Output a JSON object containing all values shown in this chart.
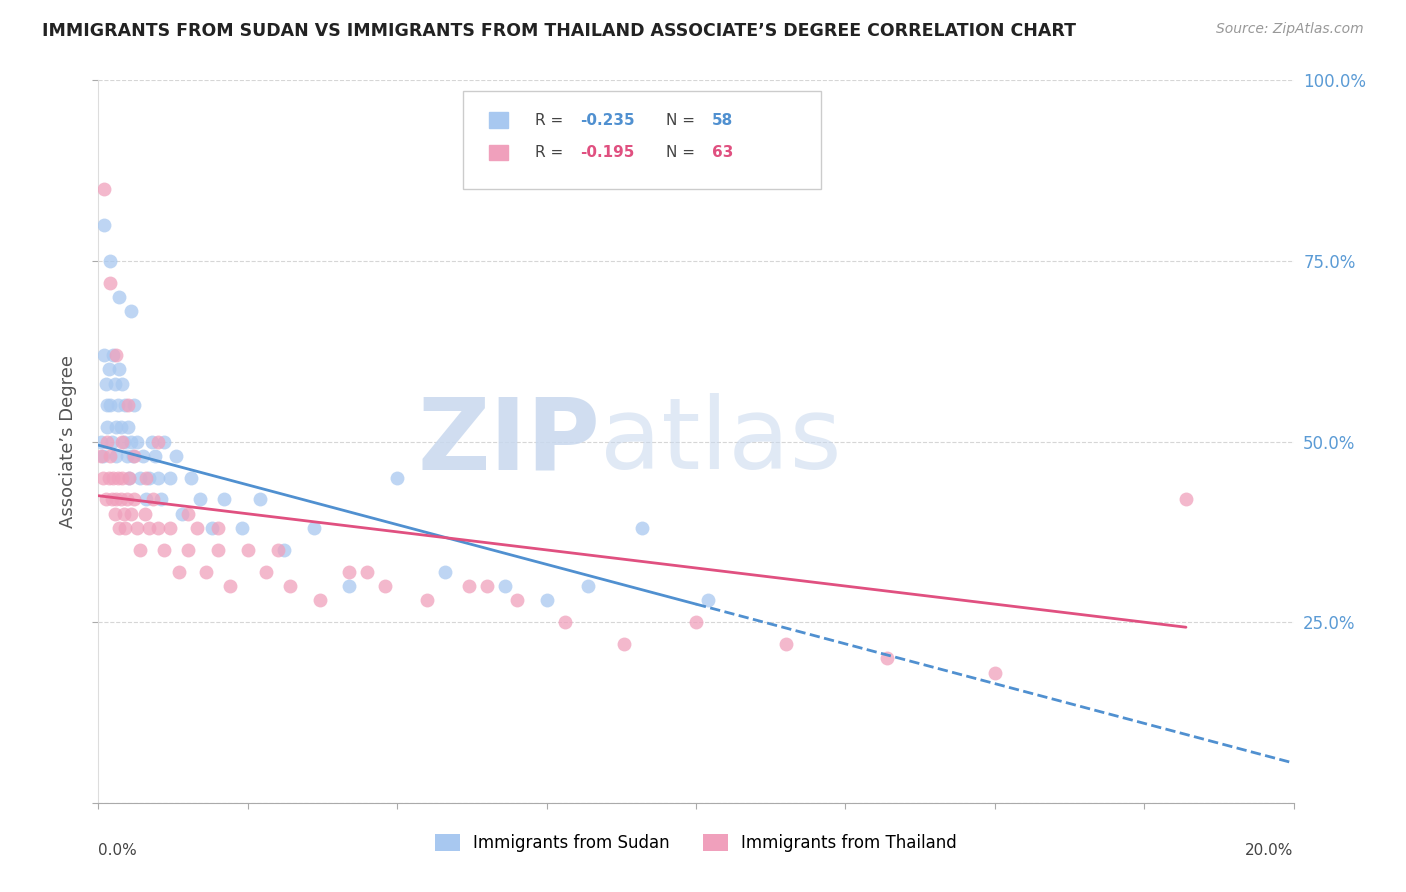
{
  "title": "IMMIGRANTS FROM SUDAN VS IMMIGRANTS FROM THAILAND ASSOCIATE’S DEGREE CORRELATION CHART",
  "source": "Source: ZipAtlas.com",
  "ylabel": "Associate’s Degree",
  "color_sudan": "#A8C8F0",
  "color_thailand": "#F0A0BC",
  "color_sudan_line": "#5090D0",
  "color_thailand_line": "#E05080",
  "watermark_zip": "ZIP",
  "watermark_atlas": "atlas",
  "watermark_color_zip": "#C8D8F0",
  "watermark_color_atlas": "#C8D8F0",
  "background_color": "#FFFFFF",
  "grid_color": "#BBBBBB",
  "title_color": "#222222",
  "right_axis_color": "#5B9BD5",
  "xmin": 0.0,
  "xmax": 20.0,
  "ymin": 0.0,
  "ymax": 1.0,
  "sudan_x": [
    0.05,
    0.08,
    0.1,
    0.12,
    0.15,
    0.15,
    0.18,
    0.2,
    0.22,
    0.25,
    0.28,
    0.3,
    0.3,
    0.32,
    0.35,
    0.38,
    0.4,
    0.42,
    0.45,
    0.48,
    0.5,
    0.52,
    0.55,
    0.58,
    0.6,
    0.65,
    0.7,
    0.75,
    0.8,
    0.85,
    0.9,
    0.95,
    1.0,
    1.05,
    1.1,
    1.2,
    1.3,
    1.4,
    1.55,
    1.7,
    1.9,
    2.1,
    2.4,
    2.7,
    3.1,
    3.6,
    4.2,
    5.0,
    5.8,
    6.8,
    7.5,
    8.2,
    9.1,
    10.2,
    0.1,
    0.2,
    0.35,
    0.55
  ],
  "sudan_y": [
    0.5,
    0.48,
    0.62,
    0.58,
    0.55,
    0.52,
    0.6,
    0.55,
    0.5,
    0.62,
    0.58,
    0.52,
    0.48,
    0.55,
    0.6,
    0.52,
    0.58,
    0.5,
    0.55,
    0.48,
    0.52,
    0.45,
    0.5,
    0.48,
    0.55,
    0.5,
    0.45,
    0.48,
    0.42,
    0.45,
    0.5,
    0.48,
    0.45,
    0.42,
    0.5,
    0.45,
    0.48,
    0.4,
    0.45,
    0.42,
    0.38,
    0.42,
    0.38,
    0.42,
    0.35,
    0.38,
    0.3,
    0.45,
    0.32,
    0.3,
    0.28,
    0.3,
    0.38,
    0.28,
    0.8,
    0.75,
    0.7,
    0.68
  ],
  "thailand_x": [
    0.05,
    0.08,
    0.12,
    0.15,
    0.18,
    0.2,
    0.22,
    0.25,
    0.28,
    0.3,
    0.32,
    0.35,
    0.38,
    0.4,
    0.42,
    0.45,
    0.48,
    0.52,
    0.55,
    0.6,
    0.65,
    0.7,
    0.78,
    0.85,
    0.92,
    1.0,
    1.1,
    1.2,
    1.35,
    1.5,
    1.65,
    1.8,
    2.0,
    2.2,
    2.5,
    2.8,
    3.2,
    3.7,
    4.2,
    4.8,
    5.5,
    6.2,
    7.0,
    7.8,
    8.8,
    10.0,
    11.5,
    13.2,
    15.0,
    18.2,
    0.1,
    0.2,
    0.3,
    0.4,
    0.5,
    0.6,
    0.8,
    1.0,
    1.5,
    2.0,
    3.0,
    4.5,
    6.5
  ],
  "thailand_y": [
    0.48,
    0.45,
    0.42,
    0.5,
    0.45,
    0.48,
    0.42,
    0.45,
    0.4,
    0.42,
    0.45,
    0.38,
    0.42,
    0.45,
    0.4,
    0.38,
    0.42,
    0.45,
    0.4,
    0.42,
    0.38,
    0.35,
    0.4,
    0.38,
    0.42,
    0.38,
    0.35,
    0.38,
    0.32,
    0.35,
    0.38,
    0.32,
    0.35,
    0.3,
    0.35,
    0.32,
    0.3,
    0.28,
    0.32,
    0.3,
    0.28,
    0.3,
    0.28,
    0.25,
    0.22,
    0.25,
    0.22,
    0.2,
    0.18,
    0.42,
    0.85,
    0.72,
    0.62,
    0.5,
    0.55,
    0.48,
    0.45,
    0.5,
    0.4,
    0.38,
    0.35,
    0.32,
    0.3
  ],
  "figwidth": 14.06,
  "figheight": 8.92
}
